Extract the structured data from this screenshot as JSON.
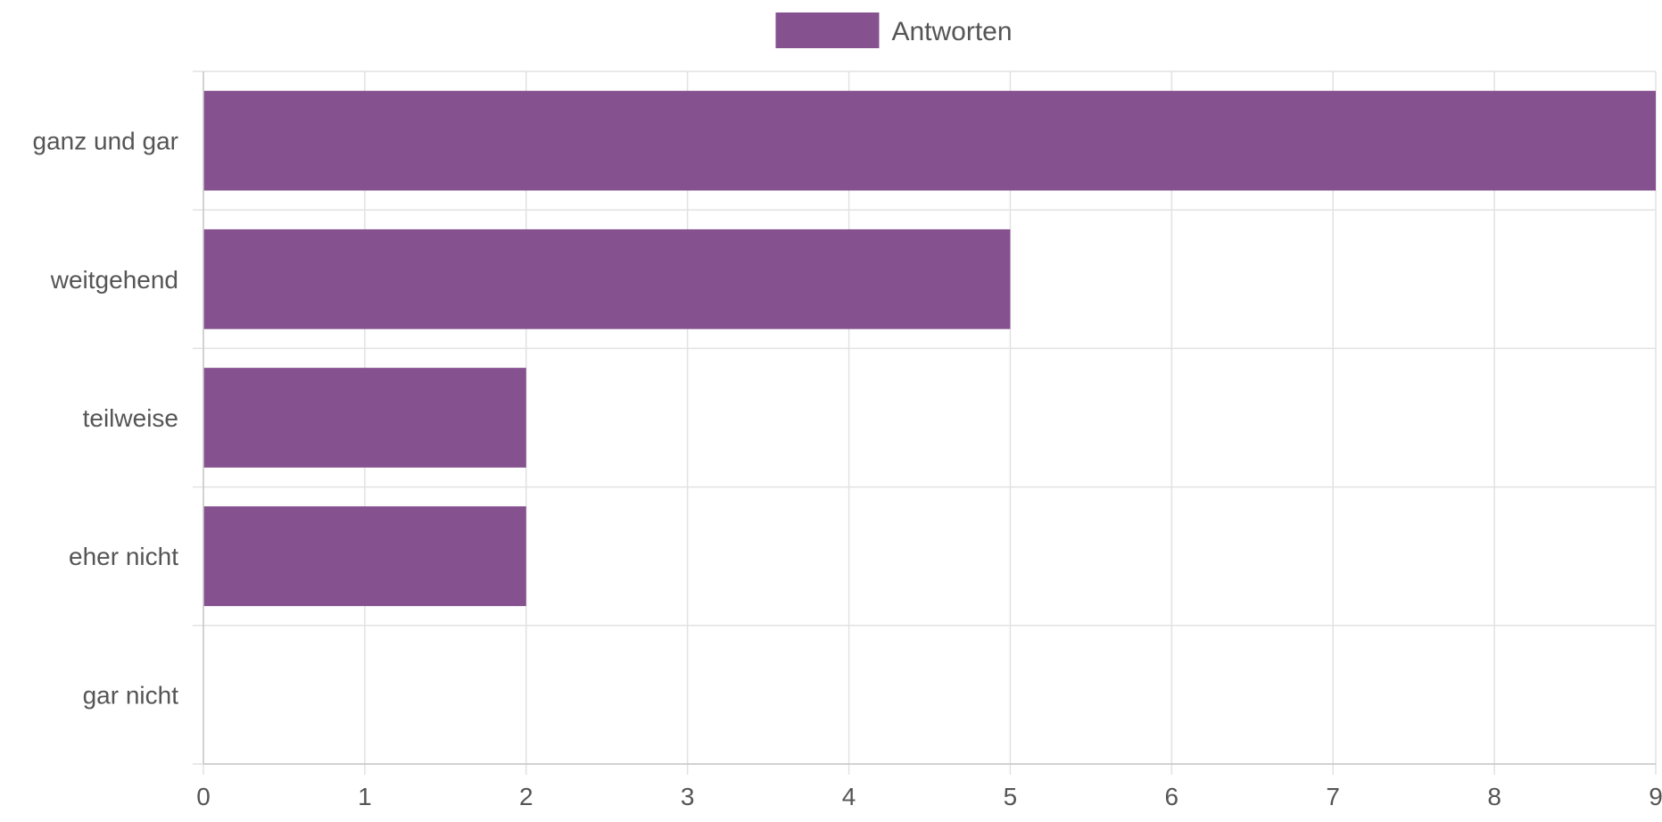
{
  "chart_data": {
    "type": "bar",
    "orientation": "horizontal",
    "title": "",
    "xlabel": "",
    "ylabel": "",
    "categories": [
      "ganz und gar",
      "weitgehend",
      "teilweise",
      "eher nicht",
      "gar nicht"
    ],
    "series": [
      {
        "name": "Antworten",
        "values": [
          9,
          5,
          2,
          2,
          0
        ],
        "color": "#85518f"
      }
    ],
    "xlim": [
      0,
      9
    ],
    "x_ticks": [
      "0",
      "1",
      "2",
      "3",
      "4",
      "5",
      "6",
      "7",
      "8",
      "9"
    ],
    "grid": true,
    "legend_position": "top-center"
  }
}
